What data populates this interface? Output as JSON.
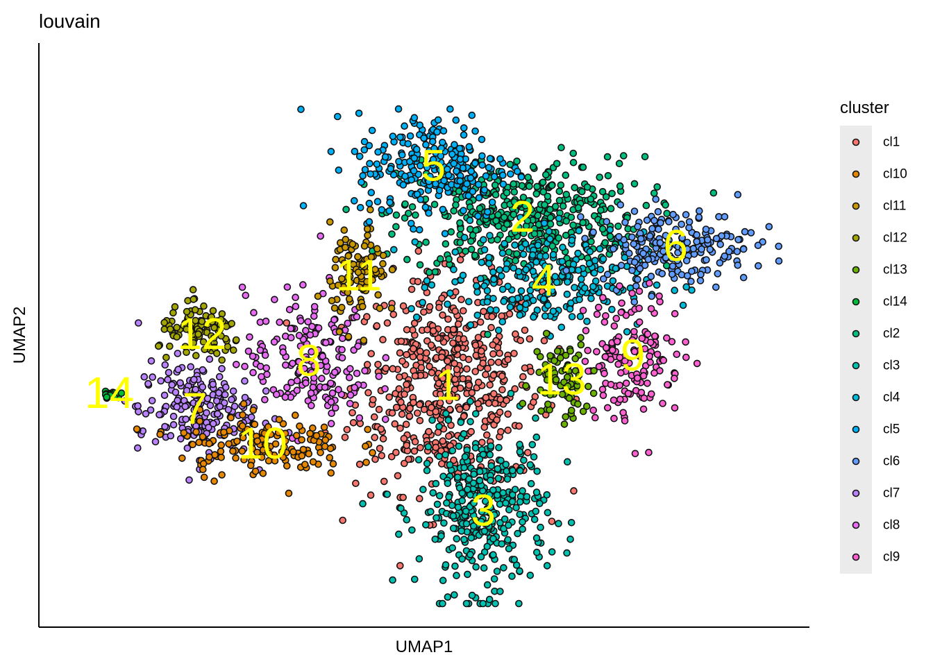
{
  "chart_data": {
    "type": "scatter",
    "title": "louvain",
    "xlabel": "UMAP1",
    "ylabel": "UMAP2",
    "xlim": [
      0,
      100
    ],
    "ylim": [
      0,
      100
    ],
    "grid": false,
    "legend": {
      "title": "cluster",
      "position": "right",
      "entries": [
        "cl1",
        "cl10",
        "cl11",
        "cl12",
        "cl13",
        "cl14",
        "cl2",
        "cl3",
        "cl4",
        "cl5",
        "cl6",
        "cl7",
        "cl8",
        "cl9"
      ]
    },
    "colors": {
      "cl1": "#F8766D",
      "cl10": "#E58700",
      "cl11": "#C99800",
      "cl12": "#A3A500",
      "cl13": "#6BB100",
      "cl14": "#00BA38",
      "cl2": "#00BF7D",
      "cl3": "#00C0AF",
      "cl4": "#00BCD8",
      "cl5": "#00B0F6",
      "cl6": "#619CFF",
      "cl7": "#B983FF",
      "cl8": "#E76BF3",
      "cl9": "#FD61D1"
    },
    "label_color": "#FFFF00",
    "clusters": [
      {
        "id": "cl1",
        "label": "1",
        "center": [
          53.5,
          41.0
        ],
        "spread": [
          6.5,
          10.0
        ],
        "n": 520
      },
      {
        "id": "cl2",
        "label": "2",
        "center": [
          64.0,
          72.5
        ],
        "spread": [
          8.5,
          5.5
        ],
        "n": 440
      },
      {
        "id": "cl3",
        "label": "3",
        "center": [
          58.5,
          17.5
        ],
        "spread": [
          4.5,
          7.5
        ],
        "n": 360
      },
      {
        "id": "cl4",
        "label": "4",
        "center": [
          67.0,
          60.5
        ],
        "spread": [
          7.0,
          4.5
        ],
        "n": 260
      },
      {
        "id": "cl5",
        "label": "5",
        "center": [
          51.5,
          82.0
        ],
        "spread": [
          5.5,
          5.0
        ],
        "n": 240
      },
      {
        "id": "cl6",
        "label": "6",
        "center": [
          85.5,
          67.0
        ],
        "spread": [
          5.5,
          3.5
        ],
        "n": 200
      },
      {
        "id": "cl7",
        "label": "7",
        "center": [
          18.0,
          36.5
        ],
        "spread": [
          4.0,
          4.5
        ],
        "n": 200
      },
      {
        "id": "cl8",
        "label": "8",
        "center": [
          34.0,
          45.5
        ],
        "spread": [
          4.5,
          6.5
        ],
        "n": 180
      },
      {
        "id": "cl9",
        "label": "9",
        "center": [
          79.5,
          46.5
        ],
        "spread": [
          3.5,
          6.0
        ],
        "n": 150
      },
      {
        "id": "cl10",
        "label": "10",
        "center": [
          27.5,
          30.0
        ],
        "spread": [
          6.0,
          3.0
        ],
        "n": 150
      },
      {
        "id": "cl11",
        "label": "11",
        "center": [
          41.0,
          61.5
        ],
        "spread": [
          2.0,
          4.5
        ],
        "n": 100
      },
      {
        "id": "cl12",
        "label": "12",
        "center": [
          19.0,
          50.5
        ],
        "spread": [
          3.0,
          2.5
        ],
        "n": 110
      },
      {
        "id": "cl13",
        "label": "13",
        "center": [
          69.5,
          42.0
        ],
        "spread": [
          2.0,
          4.0
        ],
        "n": 80
      },
      {
        "id": "cl14",
        "label": "14",
        "center": [
          6.0,
          39.5
        ],
        "spread": [
          1.5,
          0.6
        ],
        "n": 15
      }
    ]
  }
}
